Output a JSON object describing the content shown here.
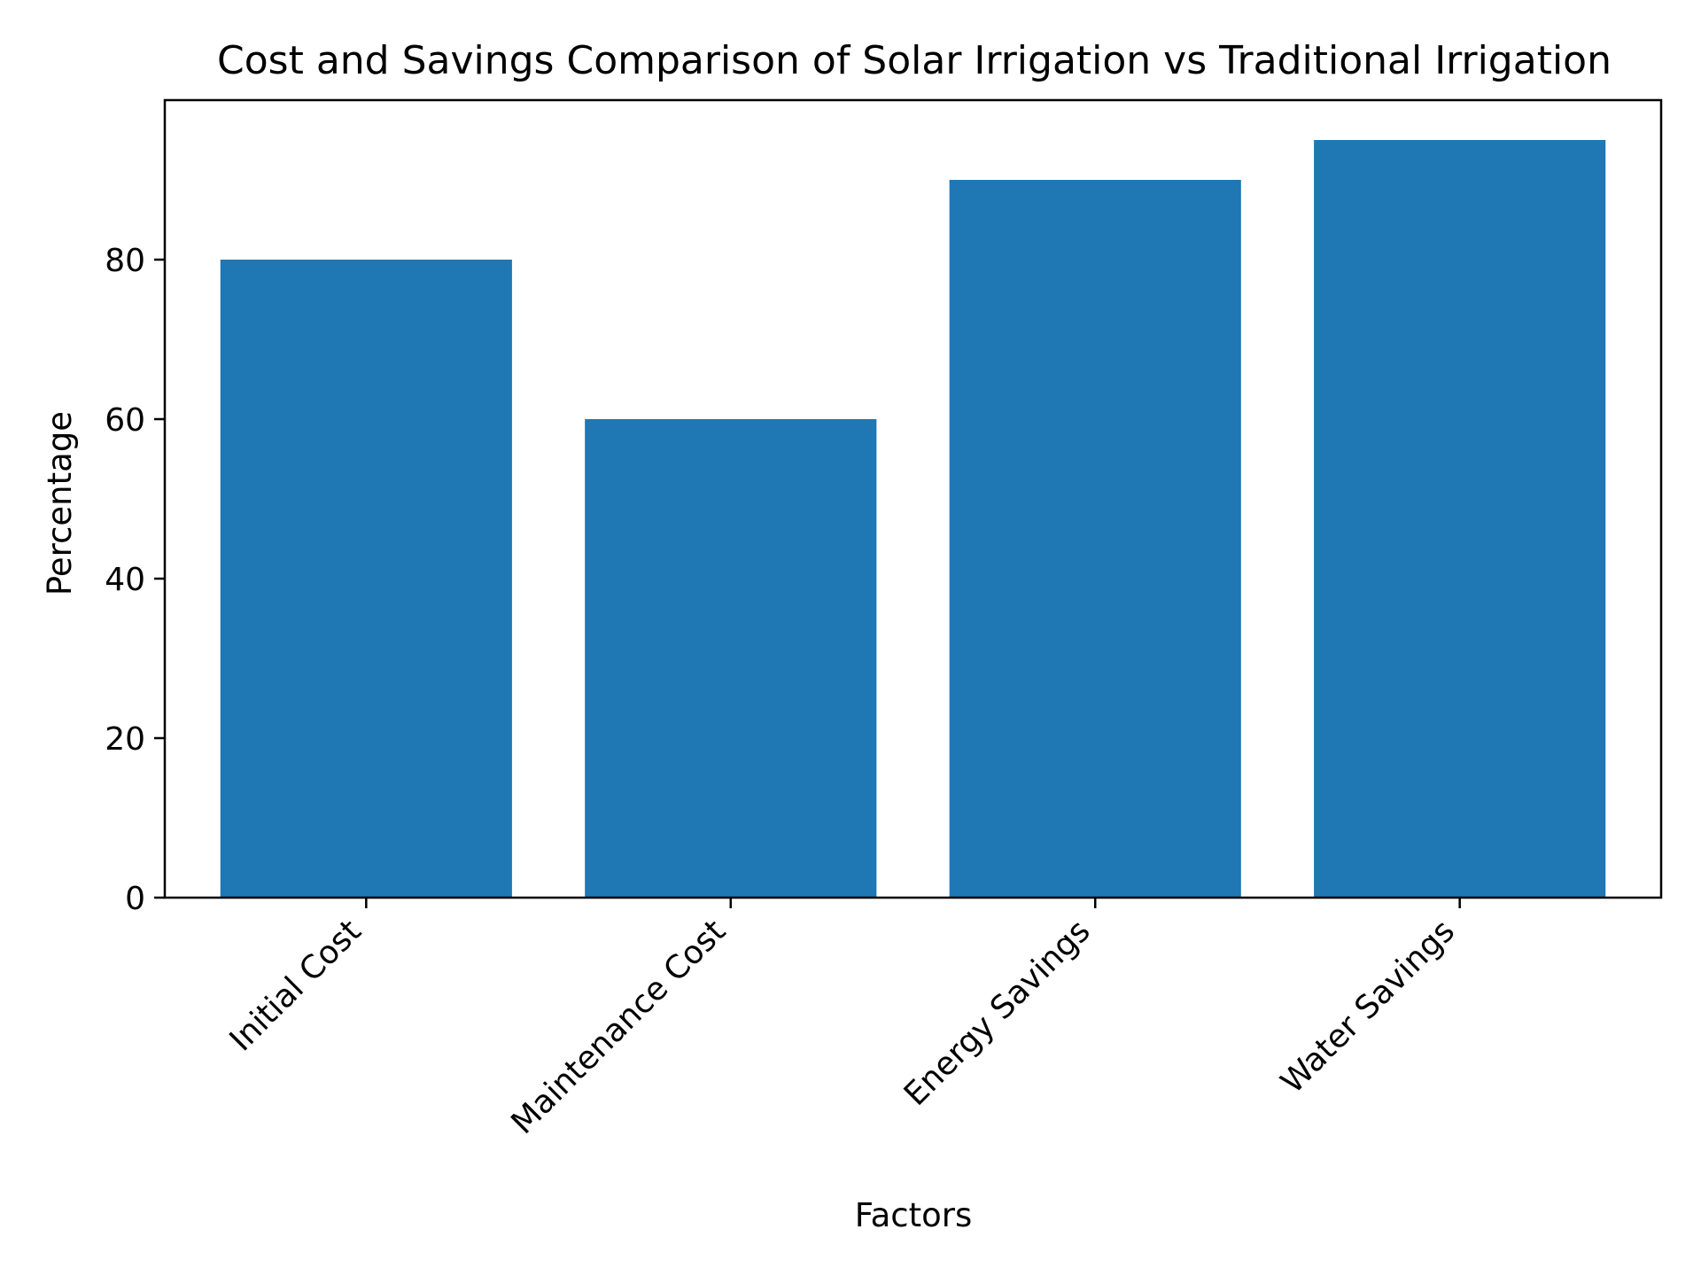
{
  "chart_data": {
    "type": "bar",
    "title": "Cost and Savings Comparison of Solar Irrigation vs Traditional Irrigation",
    "xlabel": "Factors",
    "ylabel": "Percentage",
    "categories": [
      "Initial Cost",
      "Maintenance Cost",
      "Energy Savings",
      "Water Savings"
    ],
    "values": [
      80,
      60,
      90,
      95
    ],
    "ylim": [
      0,
      100
    ],
    "yticks": [
      0,
      20,
      40,
      60,
      80
    ],
    "grid": false,
    "legend": "none",
    "colors": {
      "bar": "#1f77b4",
      "axis": "#000000",
      "background": "#ffffff"
    }
  }
}
